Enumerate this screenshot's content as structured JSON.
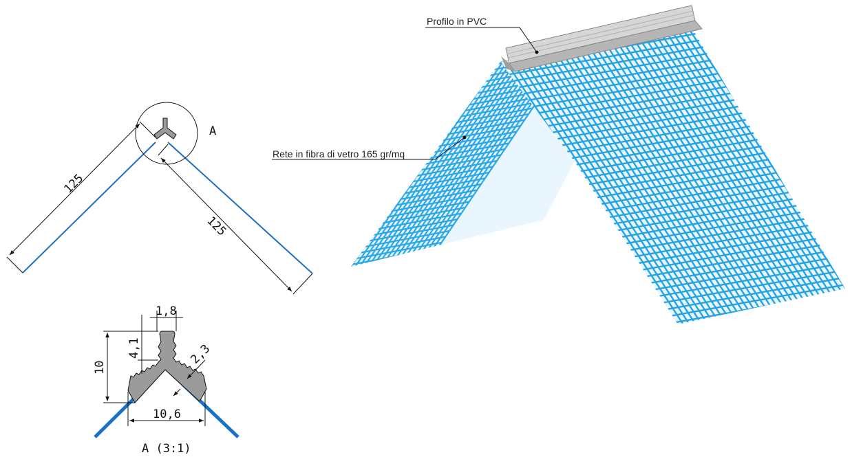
{
  "section": {
    "dim_leg_left": "125",
    "dim_leg_right": "125",
    "detail_marker": "A"
  },
  "detail": {
    "caption": "A (3:1)",
    "dim_top_width": "1,8",
    "dim_stem_height": "4,1",
    "dim_total_height": "10",
    "dim_thickness": "2,3",
    "dim_base_width": "10,6"
  },
  "render": {
    "label_profile": "Profilo in PVC",
    "label_mesh": "Rete in fibra di vetro 165 gr/mq"
  },
  "colors": {
    "mesh": "#29a9e6",
    "mesh_line": "#1e6fc2",
    "profile": "#c8c8c8"
  }
}
